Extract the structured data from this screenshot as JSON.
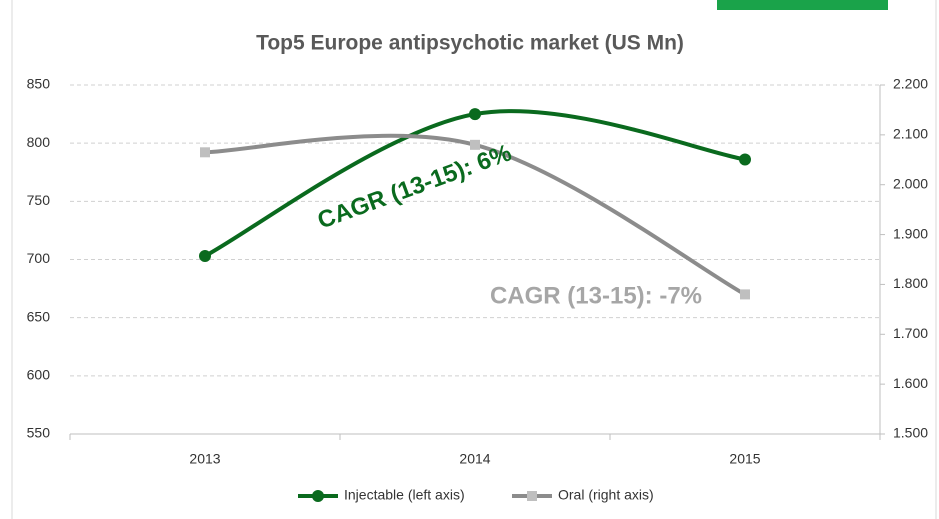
{
  "chart_data": {
    "type": "line",
    "title": "Top5 Europe antipsychotic market (US Mn)",
    "categories": [
      "2013",
      "2014",
      "2015"
    ],
    "series": [
      {
        "name": "Injectable (left axis)",
        "color": "#0a6a1e",
        "marker_color": "#0a6a1e",
        "values": [
          703,
          825,
          786
        ]
      },
      {
        "name": "Oral (right axis)",
        "color": "#8c8c8c",
        "marker_color": "#bfbfbf",
        "axis": "y2",
        "values": [
          2065,
          2080,
          1780
        ]
      }
    ],
    "ylim": [
      550,
      850
    ],
    "yticks": [
      550,
      600,
      650,
      700,
      750,
      800,
      850
    ],
    "y2lim": [
      1500,
      2200
    ],
    "y2ticks": [
      {
        "value": 1500,
        "label": "1.500"
      },
      {
        "value": 1600,
        "label": "1.600"
      },
      {
        "value": 1700,
        "label": "1.700"
      },
      {
        "value": 1800,
        "label": "1.800"
      },
      {
        "value": 1900,
        "label": "1.900"
      },
      {
        "value": 2000,
        "label": "2.000"
      },
      {
        "value": 2100,
        "label": "2.100"
      },
      {
        "value": 2200,
        "label": "2.200"
      }
    ],
    "grid": true,
    "smooth": true,
    "legend": "bottom",
    "annotations": [
      {
        "text": "CAGR (13-15): 6%",
        "color": "#0a6a1e"
      },
      {
        "text": "CAGR (13-15): -7%",
        "color": "#a6a6a6"
      }
    ]
  }
}
